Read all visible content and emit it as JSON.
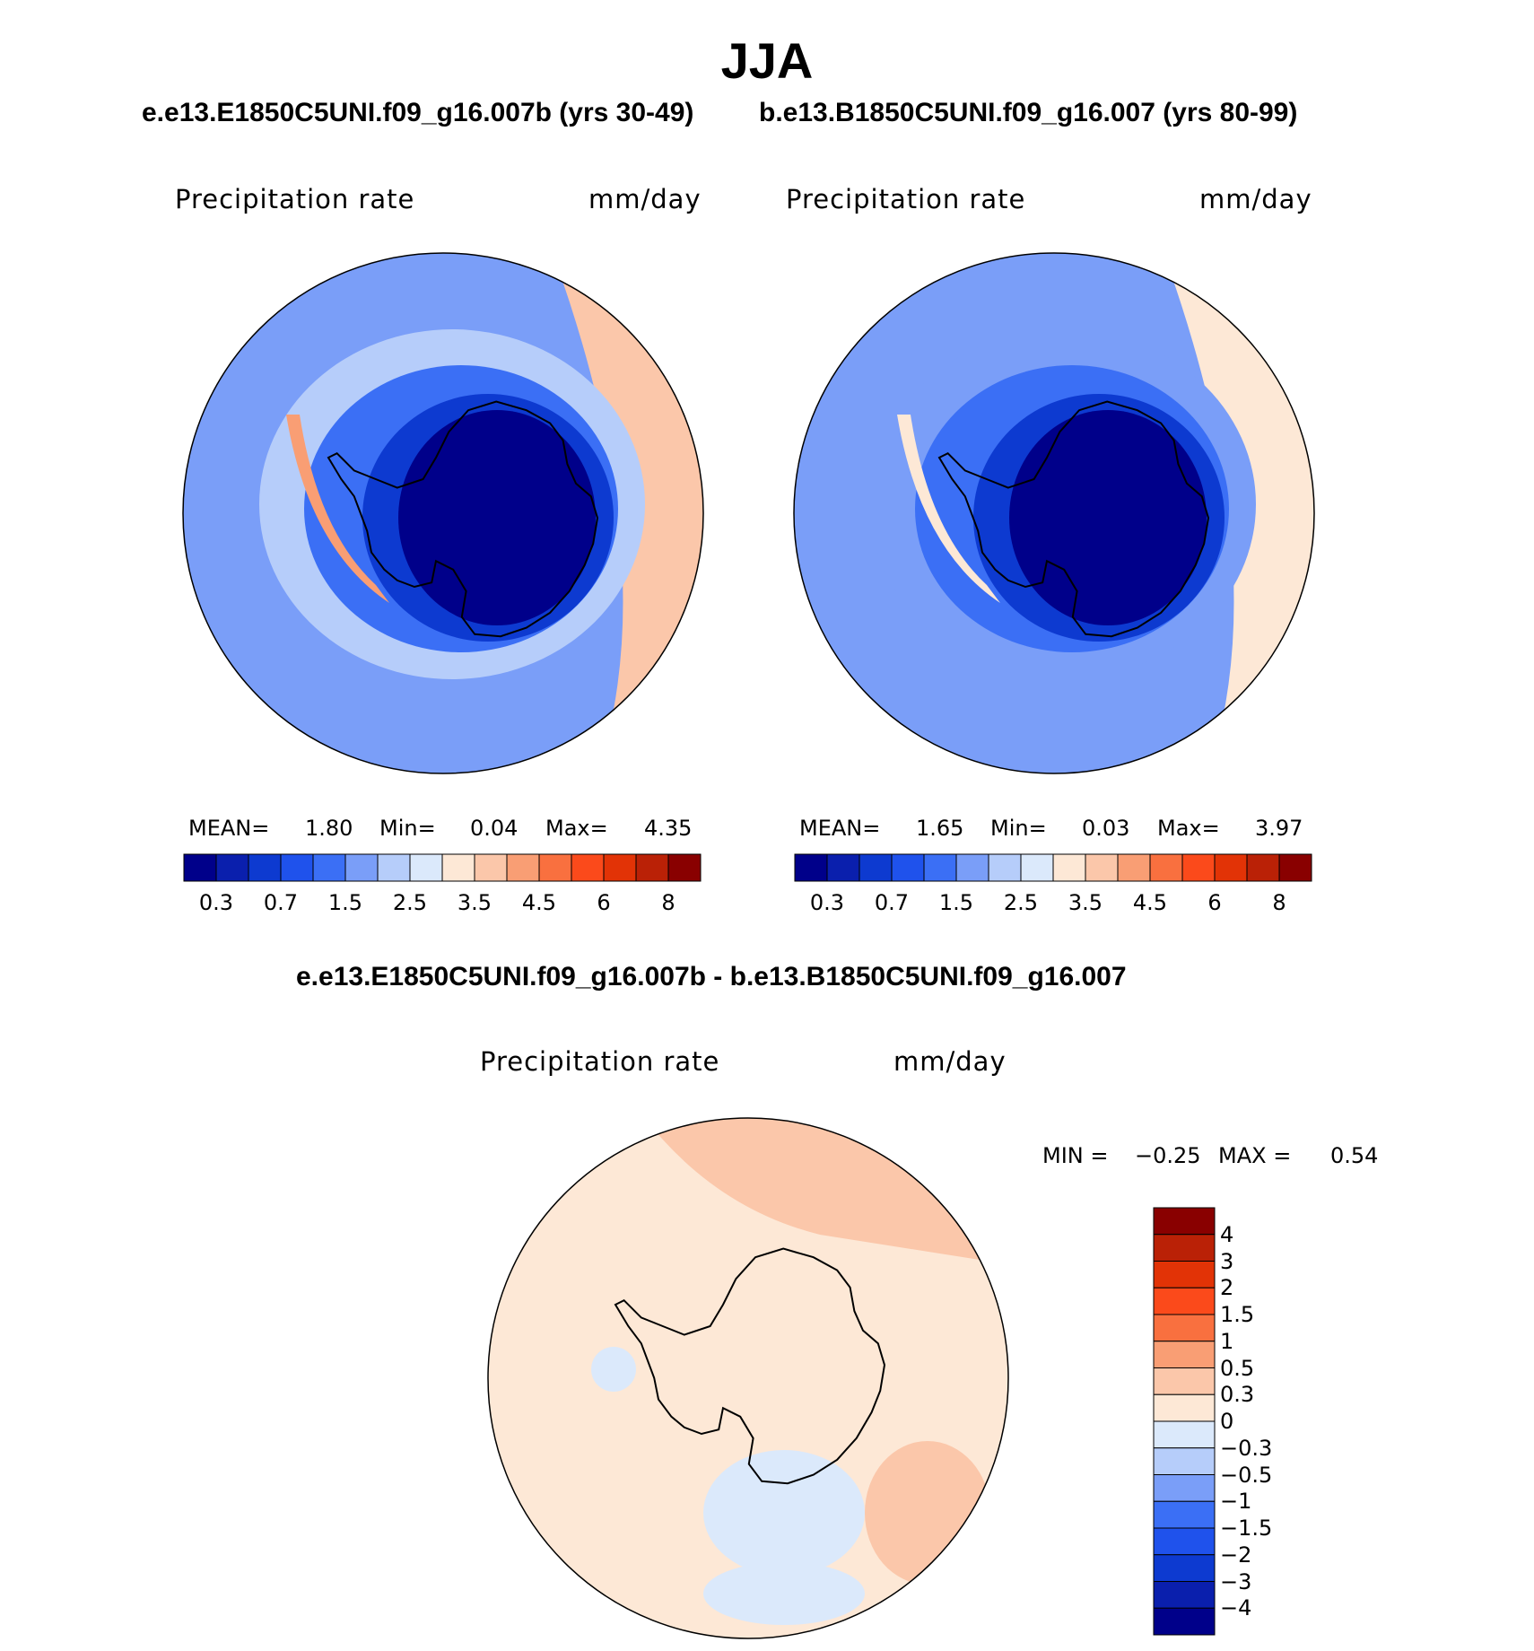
{
  "figure": {
    "season": "JJA",
    "top_subtitle_case1": "e.e13.E1850C5UNI.f09_g16.007b (yrs 30-49)",
    "top_subtitle_case2": "b.e13.B1850C5UNI.f09_g16.007 (yrs 80-99)",
    "diff_subtitle": "e.e13.E1850C5UNI.f09_g16.007b - b.e13.B1850C5UNI.f09_g16.007"
  },
  "colors": {
    "abs_palette": [
      "#00008a",
      "#0a1fad",
      "#0d3ad0",
      "#1f52ec",
      "#3b6ff5",
      "#7a9ef8",
      "#b6cdfa",
      "#dbe9fb",
      "#fde8d6",
      "#fbc7aa",
      "#f99e74",
      "#f9703f",
      "#fb4a1b",
      "#e23306",
      "#ba2106",
      "#890000"
    ],
    "diff_palette": [
      "#00008a",
      "#0a1fad",
      "#0d3ad0",
      "#1f52ec",
      "#3b6ff5",
      "#7a9ef8",
      "#b6cdfa",
      "#dbe9fb",
      "#fde8d6",
      "#fbc7aa",
      "#f99e74",
      "#f9703f",
      "#fb4a1b",
      "#e23306",
      "#ba2106",
      "#890000"
    ]
  },
  "chart_data": [
    {
      "type": "heatmap",
      "projection": "south-polar-stereographic",
      "variable_label": "Precipitation rate",
      "units": "mm/day",
      "stats": {
        "mean_label": "MEAN=",
        "mean": "1.80",
        "min_label": "Min=",
        "min": "0.04",
        "max_label": "Max=",
        "max": "4.35"
      },
      "colorbar_ticks": [
        "0.3",
        "0.7",
        "1.5",
        "2.5",
        "3.5",
        "4.5",
        "6",
        "8"
      ],
      "contour_levels": [
        0.2,
        0.3,
        0.5,
        0.7,
        1,
        1.5,
        2,
        2.5,
        3,
        3.5,
        4,
        4.5,
        5,
        6,
        7,
        8
      ],
      "zones": {
        "outer_ocean": 1.3,
        "south_atlantic_indian": 3.0,
        "ring": 1.5,
        "storm_belt": 0.8,
        "coastal": 0.4,
        "interior": 0.1,
        "antarctic_peninsula_west": 3.5
      }
    },
    {
      "type": "heatmap",
      "projection": "south-polar-stereographic",
      "variable_label": "Precipitation rate",
      "units": "mm/day",
      "stats": {
        "mean_label": "MEAN=",
        "mean": "1.65",
        "min_label": "Min=",
        "min": "0.03",
        "max_label": "Max=",
        "max": "3.97"
      },
      "colorbar_ticks": [
        "0.3",
        "0.7",
        "1.5",
        "2.5",
        "3.5",
        "4.5",
        "6",
        "8"
      ],
      "contour_levels": [
        0.2,
        0.3,
        0.5,
        0.7,
        1,
        1.5,
        2,
        2.5,
        3,
        3.5,
        4,
        4.5,
        5,
        6,
        7,
        8
      ],
      "zones": {
        "outer_ocean": 1.3,
        "south_atlantic_indian": 2.9,
        "ring": 1.4,
        "storm_belt": 0.8,
        "coastal": 0.4,
        "interior": 0.1,
        "antarctic_peninsula_west": 2.6
      }
    },
    {
      "type": "heatmap",
      "projection": "south-polar-stereographic",
      "variable_label": "Precipitation rate",
      "units": "mm/day",
      "stats": {
        "min_label": "MIN =",
        "min": "−0.25",
        "max_label": "MAX =",
        "max": "0.54"
      },
      "colorbar_ticks": [
        "4",
        "3",
        "2",
        "1.5",
        "1",
        "0.5",
        "0.3",
        "0",
        "−0.3",
        "−0.5",
        "−1",
        "−1.5",
        "−2",
        "−3",
        "−4"
      ],
      "zones": {
        "background": 0.1,
        "positive_patches": 0.35,
        "negative_patches": -0.1
      }
    }
  ]
}
